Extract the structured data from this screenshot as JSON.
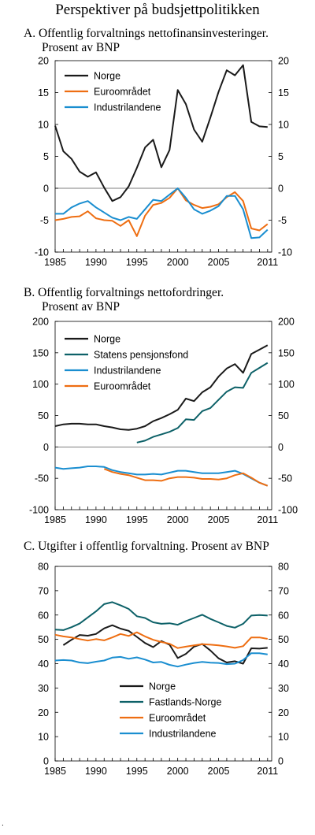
{
  "title": "Perspektiver på budsjettpolitikken",
  "footnote": ".",
  "colors": {
    "black": "#1a1a1a",
    "teal": "#0d6168",
    "orange": "#ee6e12",
    "blue": "#1a8ed0"
  },
  "chart_data": [
    {
      "type": "line",
      "title_line1": "A.  Offentlig forvaltnings nettofinansinvesteringer.",
      "title_line2": "Prosent av BNP",
      "xlim": [
        1985,
        2011.5
      ],
      "ylim": [
        -10,
        20
      ],
      "x_ticks": [
        1985,
        1990,
        1995,
        2000,
        2005,
        2011
      ],
      "y_ticks": [
        -10,
        -5,
        0,
        5,
        10,
        15,
        20
      ],
      "legend_position": "top-left",
      "grid": false,
      "series": [
        {
          "name": "Norge",
          "color": "#1a1a1a",
          "x": [
            1985,
            1986,
            1987,
            1988,
            1989,
            1990,
            1991,
            1992,
            1993,
            1994,
            1995,
            1996,
            1997,
            1998,
            1999,
            2000,
            2001,
            2002,
            2003,
            2004,
            2005,
            2006,
            2007,
            2008,
            2009,
            2010,
            2011
          ],
          "y": [
            9.8,
            5.8,
            4.6,
            2.6,
            1.8,
            2.5,
            0.1,
            -2.0,
            -1.4,
            0.3,
            3.2,
            6.4,
            7.6,
            3.3,
            6.0,
            15.4,
            13.2,
            9.2,
            7.3,
            11.1,
            15.1,
            18.5,
            17.7,
            19.3,
            10.4,
            9.7,
            9.6
          ]
        },
        {
          "name": "Euroområdet",
          "color": "#ee6e12",
          "x": [
            1985,
            1986,
            1987,
            1988,
            1989,
            1990,
            1991,
            1992,
            1993,
            1994,
            1995,
            1996,
            1997,
            1998,
            1999,
            2000,
            2001,
            2002,
            2003,
            2004,
            2005,
            2006,
            2007,
            2008,
            2009,
            2010,
            2011
          ],
          "y": [
            -5.0,
            -4.8,
            -4.5,
            -4.4,
            -3.6,
            -4.7,
            -5.0,
            -5.1,
            -5.9,
            -5.0,
            -7.5,
            -4.3,
            -2.6,
            -2.3,
            -1.5,
            0.0,
            -1.9,
            -2.6,
            -3.1,
            -2.9,
            -2.5,
            -1.4,
            -0.6,
            -2.0,
            -6.3,
            -6.6,
            -5.6
          ]
        },
        {
          "name": "Industrilandene",
          "color": "#1a8ed0",
          "x": [
            1985,
            1986,
            1987,
            1988,
            1989,
            1990,
            1991,
            1992,
            1993,
            1994,
            1995,
            1996,
            1997,
            1998,
            1999,
            2000,
            2001,
            2002,
            2003,
            2004,
            2005,
            2006,
            2007,
            2008,
            2009,
            2010,
            2011
          ],
          "y": [
            -4.0,
            -4.0,
            -3.0,
            -2.4,
            -2.0,
            -3.0,
            -3.8,
            -4.6,
            -5.0,
            -4.5,
            -4.8,
            -3.3,
            -1.8,
            -2.0,
            -1.0,
            0.0,
            -1.5,
            -3.3,
            -4.0,
            -3.5,
            -2.8,
            -1.2,
            -1.2,
            -3.3,
            -7.8,
            -7.7,
            -6.5
          ]
        }
      ]
    },
    {
      "type": "line",
      "title_line1": "B.  Offentlig forvaltnings nettofordringer.",
      "title_line2": "Prosent av BNP",
      "xlim": [
        1985,
        2011.5
      ],
      "ylim": [
        -100,
        200
      ],
      "x_ticks": [
        1985,
        1990,
        1995,
        2000,
        2005,
        2011
      ],
      "y_ticks": [
        -100,
        -50,
        0,
        50,
        100,
        150,
        200
      ],
      "legend_position": "top-left",
      "grid": false,
      "series": [
        {
          "name": "Norge",
          "color": "#1a1a1a",
          "x": [
            1985,
            1986,
            1987,
            1988,
            1989,
            1990,
            1991,
            1992,
            1993,
            1994,
            1995,
            1996,
            1997,
            1998,
            1999,
            2000,
            2001,
            2002,
            2003,
            2004,
            2005,
            2006,
            2007,
            2008,
            2009,
            2010,
            2011
          ],
          "y": [
            33,
            36,
            37,
            37,
            36,
            36,
            33,
            31,
            28,
            27,
            29,
            33,
            41,
            46,
            52,
            59,
            77,
            73,
            87,
            95,
            112,
            125,
            132,
            118,
            148,
            155,
            162
          ]
        },
        {
          "name": "Statens pensjonsfond",
          "color": "#0d6168",
          "x": [
            1995,
            1996,
            1997,
            1998,
            1999,
            2000,
            2001,
            2002,
            2003,
            2004,
            2005,
            2006,
            2007,
            2008,
            2009,
            2010,
            2011
          ],
          "y": [
            7,
            10,
            16,
            20,
            24,
            30,
            44,
            43,
            57,
            62,
            75,
            88,
            95,
            94,
            118,
            126,
            134
          ]
        },
        {
          "name": "Industrilandene",
          "color": "#1a8ed0",
          "x": [
            1985,
            1986,
            1987,
            1988,
            1989,
            1990,
            1991,
            1992,
            1993,
            1994,
            1995,
            1996,
            1997,
            1998,
            1999,
            2000,
            2001,
            2002,
            2003,
            2004,
            2005,
            2006,
            2007,
            2008,
            2009,
            2010,
            2011
          ],
          "y": [
            -33,
            -35,
            -34,
            -33,
            -31,
            -31,
            -32,
            -37,
            -40,
            -42,
            -44,
            -44,
            -43,
            -44,
            -41,
            -38,
            -38,
            -40,
            -42,
            -42,
            -42,
            -40,
            -38,
            -43,
            -50,
            -57,
            -62
          ]
        },
        {
          "name": "Euroområdet",
          "color": "#ee6e12",
          "x": [
            1991,
            1992,
            1993,
            1994,
            1995,
            1996,
            1997,
            1998,
            1999,
            2000,
            2001,
            2002,
            2003,
            2004,
            2005,
            2006,
            2007,
            2008,
            2009,
            2010,
            2011
          ],
          "y": [
            -35,
            -40,
            -43,
            -45,
            -49,
            -53,
            -53,
            -54,
            -50,
            -48,
            -48,
            -49,
            -51,
            -51,
            -52,
            -50,
            -45,
            -42,
            -49,
            -57,
            -62
          ]
        }
      ]
    },
    {
      "type": "line",
      "title_line1": "C.  Utgifter i offentlig forvaltning. Prosent av BNP",
      "title_line2": "",
      "xlim": [
        1985,
        2011.5
      ],
      "ylim": [
        0,
        80
      ],
      "x_ticks": [
        1985,
        1990,
        1995,
        2000,
        2005,
        2011
      ],
      "y_ticks": [
        0,
        10,
        20,
        30,
        40,
        50,
        60,
        70,
        80
      ],
      "legend_position": "bottom-center",
      "grid": false,
      "series": [
        {
          "name": "Norge",
          "color": "#1a1a1a",
          "x": [
            1986,
            1987,
            1988,
            1989,
            1990,
            1991,
            1992,
            1993,
            1994,
            1995,
            1996,
            1997,
            1998,
            1999,
            2000,
            2001,
            2002,
            2003,
            2004,
            2005,
            2006,
            2007,
            2008,
            2009,
            2010,
            2011
          ],
          "y": [
            47.6,
            49.8,
            51.8,
            51.5,
            52.2,
            54.5,
            55.8,
            54.4,
            53.5,
            51.0,
            48.5,
            46.8,
            49.3,
            47.8,
            42.3,
            44.0,
            47.0,
            48.1,
            45.4,
            42.2,
            40.5,
            41.0,
            40.0,
            46.3,
            46.2,
            46.5
          ]
        },
        {
          "name": "Fastlands-Norge",
          "color": "#0d6168",
          "x": [
            1985,
            1986,
            1987,
            1988,
            1989,
            1990,
            1991,
            1992,
            1993,
            1994,
            1995,
            1996,
            1997,
            1998,
            1999,
            2000,
            2001,
            2002,
            2003,
            2004,
            2005,
            2006,
            2007,
            2008,
            2009,
            2010,
            2011
          ],
          "y": [
            54.0,
            53.8,
            55.0,
            56.5,
            59.0,
            61.5,
            64.5,
            65.3,
            64.0,
            62.5,
            59.5,
            58.8,
            57.0,
            56.4,
            56.6,
            56.0,
            57.5,
            58.8,
            60.1,
            58.4,
            57.0,
            55.5,
            54.8,
            56.4,
            59.8,
            60.0,
            59.8
          ]
        },
        {
          "name": "Euroområdet",
          "color": "#ee6e12",
          "x": [
            1985,
            1986,
            1987,
            1988,
            1989,
            1990,
            1991,
            1992,
            1993,
            1994,
            1995,
            1996,
            1997,
            1998,
            1999,
            2000,
            2001,
            2002,
            2003,
            2004,
            2005,
            2006,
            2007,
            2008,
            2009,
            2010,
            2011
          ],
          "y": [
            51.9,
            51.2,
            50.8,
            50.1,
            49.5,
            50.1,
            49.6,
            50.8,
            52.2,
            51.4,
            52.9,
            51.2,
            49.8,
            48.9,
            48.2,
            46.4,
            47.0,
            47.5,
            48.0,
            47.8,
            47.5,
            47.1,
            46.5,
            47.2,
            50.8,
            50.8,
            50.2
          ]
        },
        {
          "name": "Industrilandene",
          "color": "#1a8ed0",
          "x": [
            1985,
            1986,
            1987,
            1988,
            1989,
            1990,
            1991,
            1992,
            1993,
            1994,
            1995,
            1996,
            1997,
            1998,
            1999,
            2000,
            2001,
            2002,
            2003,
            2004,
            2005,
            2006,
            2007,
            2008,
            2009,
            2010,
            2011
          ],
          "y": [
            41.3,
            41.5,
            41.3,
            40.5,
            40.2,
            40.8,
            41.3,
            42.5,
            42.8,
            42.0,
            42.6,
            41.7,
            40.5,
            40.7,
            39.5,
            38.8,
            39.6,
            40.3,
            40.7,
            40.4,
            40.3,
            39.8,
            40.0,
            41.5,
            44.3,
            44.3,
            43.8
          ]
        }
      ]
    }
  ]
}
